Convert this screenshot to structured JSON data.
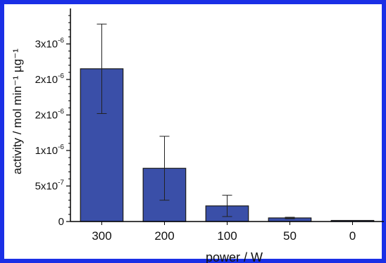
{
  "chart_data": {
    "type": "bar",
    "categories": [
      "300",
      "200",
      "100",
      "50",
      "0"
    ],
    "values": [
      2.15e-06,
      7.5e-07,
      2.2e-07,
      5e-08,
      0
    ],
    "errors": [
      6.3e-07,
      4.5e-07,
      1.5e-07,
      1e-08,
      0
    ],
    "ylim": [
      0,
      3e-06
    ],
    "xlabel": "power / W",
    "ylabel": "activity / mol min⁻¹ µg⁻¹",
    "yticks": [
      {
        "value": 0,
        "mantissa": "0",
        "exponent": ""
      },
      {
        "value": 5e-07,
        "mantissa": "5x10",
        "exponent": "-7"
      },
      {
        "value": 1e-06,
        "mantissa": "1x10",
        "exponent": "-6"
      },
      {
        "value": 1.5e-06,
        "mantissa": "2x10",
        "exponent": "-6"
      },
      {
        "value": 2e-06,
        "mantissa": "2x10",
        "exponent": "-6"
      },
      {
        "value": 2.5e-06,
        "mantissa": "3x10",
        "exponent": "-6"
      }
    ],
    "grid": false,
    "colors": {
      "bar": "#3a4fa8",
      "bar_edge": "#1a1a1a",
      "axis": "#000000",
      "frame": "#1a2fe6"
    }
  }
}
